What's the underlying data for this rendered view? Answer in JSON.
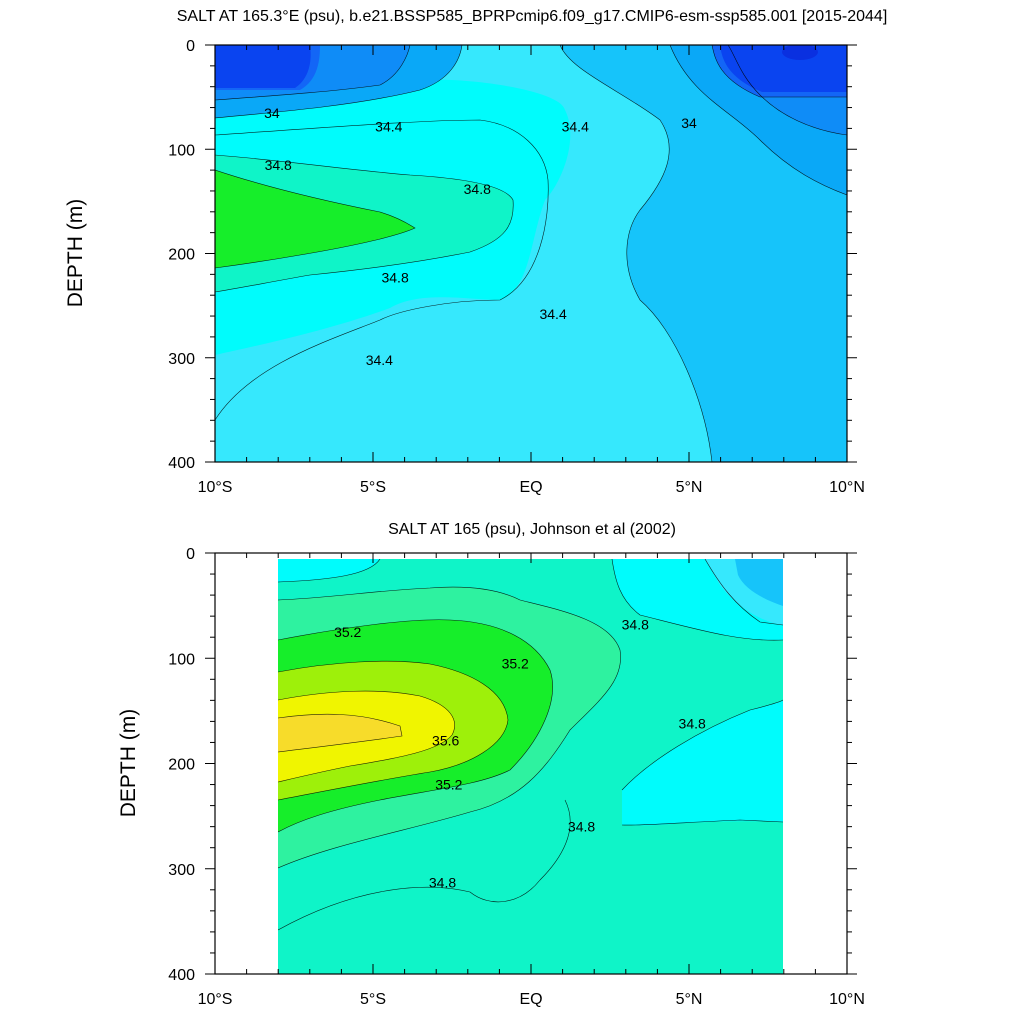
{
  "chart_data": [
    {
      "type": "contour",
      "title": "SALT AT 165.3°E (psu), b.e21.BSSP585_BPRPcmip6.f09_g17.CMIP6-esm-ssp585.001 [2015-2044]",
      "ylabel": "DEPTH (m)",
      "xlabel": "",
      "xlim": [
        -10,
        10
      ],
      "ylim": [
        400,
        0
      ],
      "x_ticks": [
        -10,
        -5,
        0,
        5,
        10
      ],
      "x_tick_labels": [
        "10°S",
        "5°S",
        "EQ",
        "5°N",
        "10°N"
      ],
      "y_ticks": [
        0,
        100,
        200,
        300,
        400
      ],
      "y_tick_labels": [
        "0",
        "100",
        "200",
        "300",
        "400"
      ],
      "data_x_range": [
        -10,
        10
      ],
      "contour_labels": [
        {
          "text": "34",
          "x": -8.2,
          "depth": 65
        },
        {
          "text": "34.4",
          "x": -4.5,
          "depth": 78
        },
        {
          "text": "34.4",
          "x": 1.4,
          "depth": 78
        },
        {
          "text": "34",
          "x": 5.0,
          "depth": 75
        },
        {
          "text": "34.8",
          "x": -8.0,
          "depth": 115
        },
        {
          "text": "34.8",
          "x": -1.7,
          "depth": 138
        },
        {
          "text": "34.8",
          "x": -4.3,
          "depth": 223
        },
        {
          "text": "34.4",
          "x": 0.7,
          "depth": 258
        },
        {
          "text": "34.4",
          "x": -4.8,
          "depth": 302
        }
      ]
    },
    {
      "type": "contour",
      "title": "SALT AT 165 (psu), Johnson et al (2002)",
      "ylabel": "DEPTH (m)",
      "xlabel": "",
      "xlim": [
        -10,
        10
      ],
      "ylim": [
        400,
        0
      ],
      "x_ticks": [
        -10,
        -5,
        0,
        5,
        10
      ],
      "x_tick_labels": [
        "10°S",
        "5°S",
        "EQ",
        "5°N",
        "10°N"
      ],
      "y_ticks": [
        0,
        100,
        200,
        300,
        400
      ],
      "y_tick_labels": [
        "0",
        "100",
        "200",
        "300",
        "400"
      ],
      "data_x_range": [
        -8,
        8
      ],
      "contour_labels": [
        {
          "text": "35.2",
          "x": -5.8,
          "depth": 75
        },
        {
          "text": "35.2",
          "x": -0.5,
          "depth": 105
        },
        {
          "text": "34.8",
          "x": 3.3,
          "depth": 68
        },
        {
          "text": "35.6",
          "x": -2.7,
          "depth": 178
        },
        {
          "text": "34.8",
          "x": 5.1,
          "depth": 162
        },
        {
          "text": "35.2",
          "x": -2.6,
          "depth": 220
        },
        {
          "text": "34.8",
          "x": 1.6,
          "depth": 260
        },
        {
          "text": "34.8",
          "x": -2.8,
          "depth": 313
        }
      ]
    }
  ],
  "colors": {
    "s33_6": "#0a44f0",
    "s33_8": "#1366f6",
    "s34_0": "#0f8cf7",
    "s34_2": "#0aa8f7",
    "s34_4": "#16c4fa",
    "s34_6": "#36e8fd",
    "s34_8": "#00fcfc",
    "s35_0": "#0ff4c8",
    "s35_2": "#2ef2a0",
    "s35_4": "#16ee2a",
    "s35_6": "#9ef00a",
    "s35_8": "#f0f500",
    "s36_0": "#fbf20a",
    "s36_2": "#f7dc2a"
  }
}
